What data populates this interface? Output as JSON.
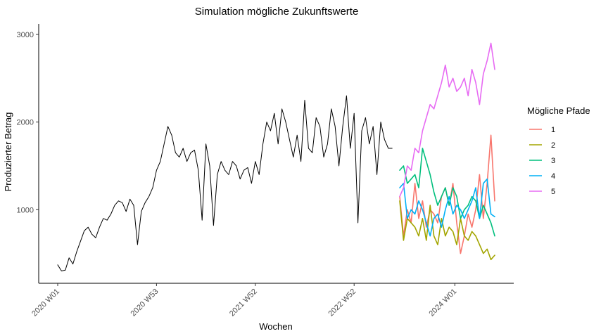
{
  "chart_data": {
    "type": "line",
    "title": "Simulation mögliche Zukunftswerte",
    "xlabel": "Wochen",
    "ylabel": "Produzierter Betrag",
    "x_ticks": [
      "2020 W01",
      "2020 W53",
      "2021 W52",
      "2022 W52",
      "2024 W01"
    ],
    "x_tick_index": [
      0,
      52,
      104,
      156,
      209
    ],
    "xlim": [
      -10,
      240
    ],
    "y_ticks": [
      1000,
      2000,
      3000
    ],
    "ylim": [
      160,
      3120
    ],
    "grid": false,
    "legend": {
      "title": "Mögliche Pfade",
      "position": "right"
    },
    "history": {
      "color": "#000000",
      "x": [
        0,
        2,
        4,
        6,
        8,
        10,
        12,
        14,
        16,
        18,
        20,
        22,
        24,
        26,
        28,
        30,
        32,
        34,
        36,
        38,
        40,
        42,
        44,
        46,
        48,
        50,
        52,
        54,
        56,
        58,
        60,
        62,
        64,
        66,
        68,
        70,
        72,
        74,
        76,
        78,
        80,
        82,
        84,
        86,
        88,
        90,
        92,
        94,
        96,
        98,
        100,
        102,
        104,
        106,
        108,
        110,
        112,
        114,
        116,
        118,
        120,
        122,
        124,
        126,
        128,
        130,
        132,
        134,
        136,
        138,
        140,
        142,
        144,
        146,
        148,
        150,
        152,
        154,
        156,
        158,
        160,
        162,
        164,
        166,
        168,
        170,
        172,
        174,
        176
      ],
      "y": [
        370,
        300,
        310,
        450,
        380,
        520,
        640,
        760,
        800,
        720,
        680,
        800,
        900,
        880,
        950,
        1050,
        1100,
        1080,
        980,
        1120,
        1050,
        600,
        980,
        1080,
        1150,
        1250,
        1450,
        1550,
        1750,
        1950,
        1850,
        1650,
        1600,
        1700,
        1550,
        1650,
        1680,
        1450,
        880,
        1750,
        1500,
        820,
        1400,
        1550,
        1450,
        1400,
        1550,
        1500,
        1350,
        1450,
        1480,
        1300,
        1550,
        1400,
        1750,
        2000,
        1900,
        2100,
        1750,
        2150,
        2000,
        1800,
        1600,
        1850,
        1550,
        2250,
        1700,
        1650,
        2050,
        1950,
        1600,
        1750,
        2150,
        1950,
        1500,
        1950,
        2300,
        1700,
        2100,
        850,
        1900,
        2050,
        1750,
        1950,
        1400,
        2000,
        1800,
        1700,
        1700
      ]
    },
    "x_future": [
      180,
      182,
      184,
      186,
      188,
      190,
      192,
      194,
      196,
      198,
      200,
      202,
      204,
      206,
      208,
      210,
      212,
      214,
      216,
      218,
      220,
      222,
      224,
      226,
      228,
      230
    ],
    "series": [
      {
        "name": "1",
        "color": "#F8766D",
        "values": [
          1150,
          700,
          1000,
          850,
          1300,
          900,
          1100,
          800,
          1000,
          950,
          850,
          1150,
          1250,
          1050,
          1300,
          850,
          500,
          700,
          950,
          800,
          1000,
          1400,
          900,
          1300,
          1850,
          1100
        ]
      },
      {
        "name": "2",
        "color": "#A3A500",
        "values": [
          1100,
          650,
          900,
          850,
          800,
          700,
          900,
          650,
          1050,
          700,
          600,
          900,
          700,
          800,
          750,
          600,
          900,
          700,
          650,
          750,
          700,
          600,
          500,
          550,
          430,
          480
        ]
      },
      {
        "name": "3",
        "color": "#00BF7D",
        "values": [
          1450,
          1500,
          1300,
          1350,
          1400,
          1250,
          1700,
          1550,
          1400,
          1200,
          1050,
          1150,
          1250,
          1050,
          1250,
          1150,
          900,
          1000,
          1050,
          1150,
          1100,
          900,
          1050,
          950,
          850,
          700
        ]
      },
      {
        "name": "4",
        "color": "#00B0F6",
        "values": [
          1250,
          1300,
          900,
          1000,
          950,
          1100,
          1000,
          850,
          700,
          900,
          950,
          800,
          1000,
          1150,
          950,
          1050,
          1000,
          900,
          1000,
          1100,
          1250,
          900,
          1300,
          1350,
          950,
          920
        ]
      },
      {
        "name": "5",
        "color": "#E76BF3",
        "values": [
          1150,
          1250,
          1500,
          1450,
          1700,
          1650,
          1900,
          2050,
          2200,
          2150,
          2300,
          2450,
          2650,
          2400,
          2500,
          2350,
          2400,
          2500,
          2300,
          2600,
          2450,
          2200,
          2550,
          2700,
          2900,
          2600
        ]
      }
    ]
  }
}
